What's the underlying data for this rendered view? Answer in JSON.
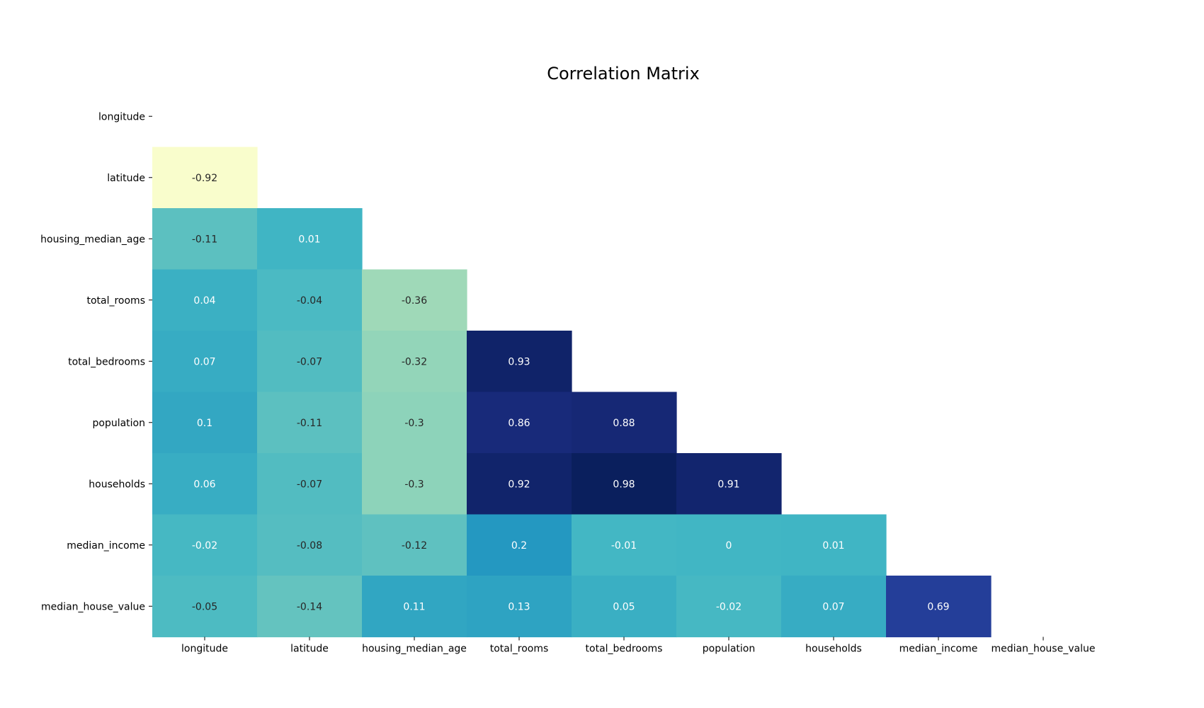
{
  "chart_data": {
    "type": "heatmap",
    "title": "Correlation Matrix",
    "xlabel": "",
    "ylabel": "",
    "categories": [
      "longitude",
      "latitude",
      "housing_median_age",
      "total_rooms",
      "total_bedrooms",
      "population",
      "households",
      "median_income",
      "median_house_value"
    ],
    "mask": "upper triangle including diagonal hidden",
    "colormap": "YlGnBu",
    "color_range": [
      -1,
      1
    ],
    "colorbar": false,
    "grid": false,
    "values": [
      [
        null,
        null,
        null,
        null,
        null,
        null,
        null,
        null,
        null
      ],
      [
        -0.92,
        null,
        null,
        null,
        null,
        null,
        null,
        null,
        null
      ],
      [
        -0.11,
        0.01,
        null,
        null,
        null,
        null,
        null,
        null,
        null
      ],
      [
        0.04,
        -0.04,
        -0.36,
        null,
        null,
        null,
        null,
        null,
        null
      ],
      [
        0.07,
        -0.07,
        -0.32,
        0.93,
        null,
        null,
        null,
        null,
        null
      ],
      [
        0.1,
        -0.11,
        -0.3,
        0.86,
        0.88,
        null,
        null,
        null,
        null
      ],
      [
        0.06,
        -0.07,
        -0.3,
        0.92,
        0.98,
        0.91,
        null,
        null,
        null
      ],
      [
        -0.02,
        -0.08,
        -0.12,
        0.2,
        -0.01,
        0,
        0.01,
        null,
        null
      ],
      [
        -0.05,
        -0.14,
        0.11,
        0.13,
        0.05,
        -0.02,
        0.07,
        0.69,
        null
      ]
    ]
  }
}
